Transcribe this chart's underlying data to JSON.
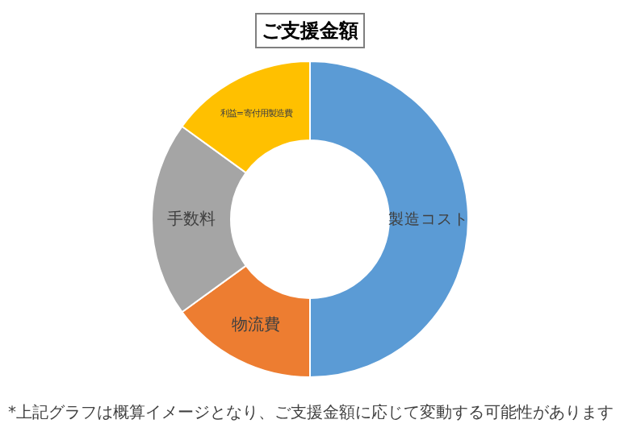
{
  "chart_data": {
    "type": "donut",
    "title": "ご支援金額",
    "categories": [
      "製造コスト",
      "物流費",
      "手数料",
      "利益=寄付用製造費"
    ],
    "values": [
      50,
      15,
      20,
      15
    ],
    "colors": [
      "#5b9bd5",
      "#ed7d31",
      "#a5a5a5",
      "#ffc000"
    ],
    "legend": false,
    "annotations": [
      "*上記グラフは概算イメージとなり、ご支援金額に応じて変動する可能性があります"
    ]
  }
}
